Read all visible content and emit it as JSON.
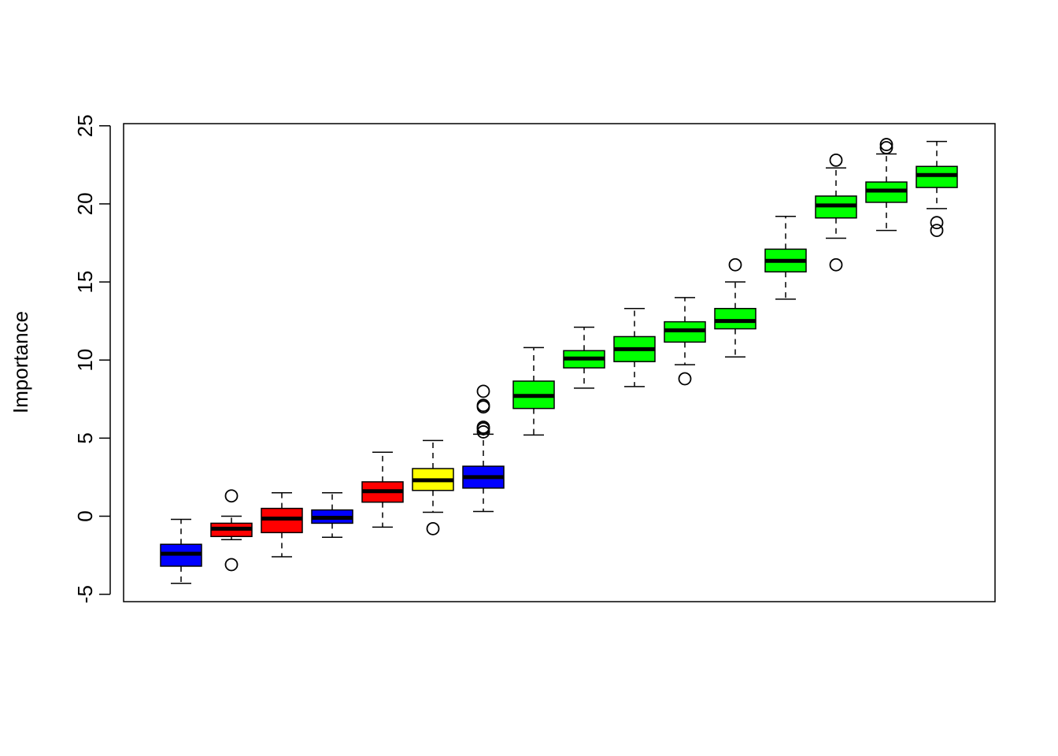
{
  "chart_data": {
    "type": "boxplot",
    "title": "",
    "xlabel": "",
    "ylabel": "Importance",
    "ylim": [
      -5.4,
      25.2
    ],
    "y_ticks": [
      -5,
      0,
      5,
      10,
      15,
      20,
      25
    ],
    "y_tick_labels": [
      "-5",
      "0",
      "5",
      "10",
      "15",
      "20",
      "25"
    ],
    "grid": false,
    "legend": "none",
    "colors": {
      "blue": "#0000ff",
      "red": "#ff0000",
      "yellow": "#ffff00",
      "green": "#00ff00"
    },
    "boxes": [
      {
        "color": "blue",
        "whisker_low": -4.3,
        "q1": -3.2,
        "median": -2.4,
        "q3": -1.8,
        "whisker_high": -0.2,
        "outliers": []
      },
      {
        "color": "red",
        "whisker_low": -1.5,
        "q1": -1.3,
        "median": -0.8,
        "q3": -0.45,
        "whisker_high": 0.0,
        "outliers": [
          1.3,
          -3.1
        ]
      },
      {
        "color": "red",
        "whisker_low": -2.6,
        "q1": -1.05,
        "median": -0.15,
        "q3": 0.5,
        "whisker_high": 1.5,
        "outliers": []
      },
      {
        "color": "blue",
        "whisker_low": -1.35,
        "q1": -0.45,
        "median": -0.1,
        "q3": 0.4,
        "whisker_high": 1.5,
        "outliers": []
      },
      {
        "color": "red",
        "whisker_low": -0.7,
        "q1": 0.9,
        "median": 1.6,
        "q3": 2.2,
        "whisker_high": 4.1,
        "outliers": []
      },
      {
        "color": "yellow",
        "whisker_low": 0.25,
        "q1": 1.65,
        "median": 2.3,
        "q3": 3.05,
        "whisker_high": 4.85,
        "outliers": [
          -0.8
        ]
      },
      {
        "color": "blue",
        "whisker_low": 0.3,
        "q1": 1.8,
        "median": 2.5,
        "q3": 3.2,
        "whisker_high": 5.25,
        "outliers": [
          5.4,
          5.6,
          5.7,
          7.0,
          7.1,
          8.0
        ]
      },
      {
        "color": "green",
        "whisker_low": 5.2,
        "q1": 6.9,
        "median": 7.7,
        "q3": 8.65,
        "whisker_high": 10.8,
        "outliers": []
      },
      {
        "color": "green",
        "whisker_low": 8.2,
        "q1": 9.5,
        "median": 10.1,
        "q3": 10.6,
        "whisker_high": 12.1,
        "outliers": []
      },
      {
        "color": "green",
        "whisker_low": 8.3,
        "q1": 9.9,
        "median": 10.7,
        "q3": 11.5,
        "whisker_high": 13.3,
        "outliers": []
      },
      {
        "color": "green",
        "whisker_low": 9.7,
        "q1": 11.15,
        "median": 11.9,
        "q3": 12.45,
        "whisker_high": 14.0,
        "outliers": [
          8.8
        ]
      },
      {
        "color": "green",
        "whisker_low": 10.2,
        "q1": 12.0,
        "median": 12.5,
        "q3": 13.3,
        "whisker_high": 15.0,
        "outliers": [
          16.1
        ]
      },
      {
        "color": "green",
        "whisker_low": 13.9,
        "q1": 15.65,
        "median": 16.35,
        "q3": 17.1,
        "whisker_high": 19.2,
        "outliers": []
      },
      {
        "color": "green",
        "whisker_low": 17.8,
        "q1": 19.1,
        "median": 19.9,
        "q3": 20.5,
        "whisker_high": 22.3,
        "outliers": [
          16.1,
          22.8
        ]
      },
      {
        "color": "green",
        "whisker_low": 18.3,
        "q1": 20.1,
        "median": 20.85,
        "q3": 21.4,
        "whisker_high": 23.2,
        "outliers": [
          23.6,
          23.8
        ]
      },
      {
        "color": "green",
        "whisker_low": 19.7,
        "q1": 21.05,
        "median": 21.85,
        "q3": 22.4,
        "whisker_high": 24.0,
        "outliers": [
          18.3,
          18.8
        ]
      }
    ]
  }
}
